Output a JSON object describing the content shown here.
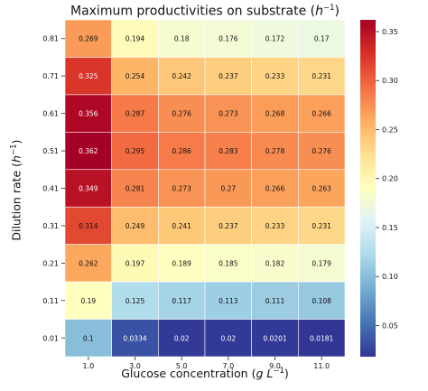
{
  "chart_data": {
    "type": "heatmap",
    "title": {
      "main": "Maximum productivities on substrate (",
      "unit_base": "h",
      "unit_exp": "−1",
      "close": ")"
    },
    "xlabel": {
      "main": "Glucose concentration (",
      "unit": "g L",
      "unit_exp": "−1",
      "close": ")"
    },
    "ylabel": {
      "main": "Dilution rate (",
      "unit_base": "h",
      "unit_exp": "−1",
      "close": ")"
    },
    "x_categories": [
      "1.0",
      "3.0",
      "5.0",
      "7.0",
      "9.0",
      "11.0"
    ],
    "y_categories": [
      "0.81",
      "0.71",
      "0.61",
      "0.51",
      "0.41",
      "0.31",
      "0.21",
      "0.11",
      "0.01"
    ],
    "values": [
      [
        0.269,
        0.194,
        0.18,
        0.176,
        0.172,
        0.17
      ],
      [
        0.325,
        0.254,
        0.242,
        0.237,
        0.233,
        0.231
      ],
      [
        0.356,
        0.287,
        0.276,
        0.273,
        0.268,
        0.266
      ],
      [
        0.362,
        0.295,
        0.286,
        0.283,
        0.278,
        0.276
      ],
      [
        0.349,
        0.281,
        0.273,
        0.27,
        0.266,
        0.263
      ],
      [
        0.314,
        0.249,
        0.241,
        0.237,
        0.233,
        0.231
      ],
      [
        0.262,
        0.197,
        0.189,
        0.185,
        0.182,
        0.179
      ],
      [
        0.19,
        0.125,
        0.117,
        0.113,
        0.111,
        0.108
      ],
      [
        0.1,
        0.0334,
        0.02,
        0.02,
        0.0201,
        0.0181
      ]
    ],
    "colorbar": {
      "colormap": "RdYlBu_r",
      "vmin": 0.0181,
      "vmax": 0.362,
      "ticks": [
        "0.05",
        "0.10",
        "0.15",
        "0.20",
        "0.25",
        "0.30",
        "0.35"
      ]
    }
  }
}
